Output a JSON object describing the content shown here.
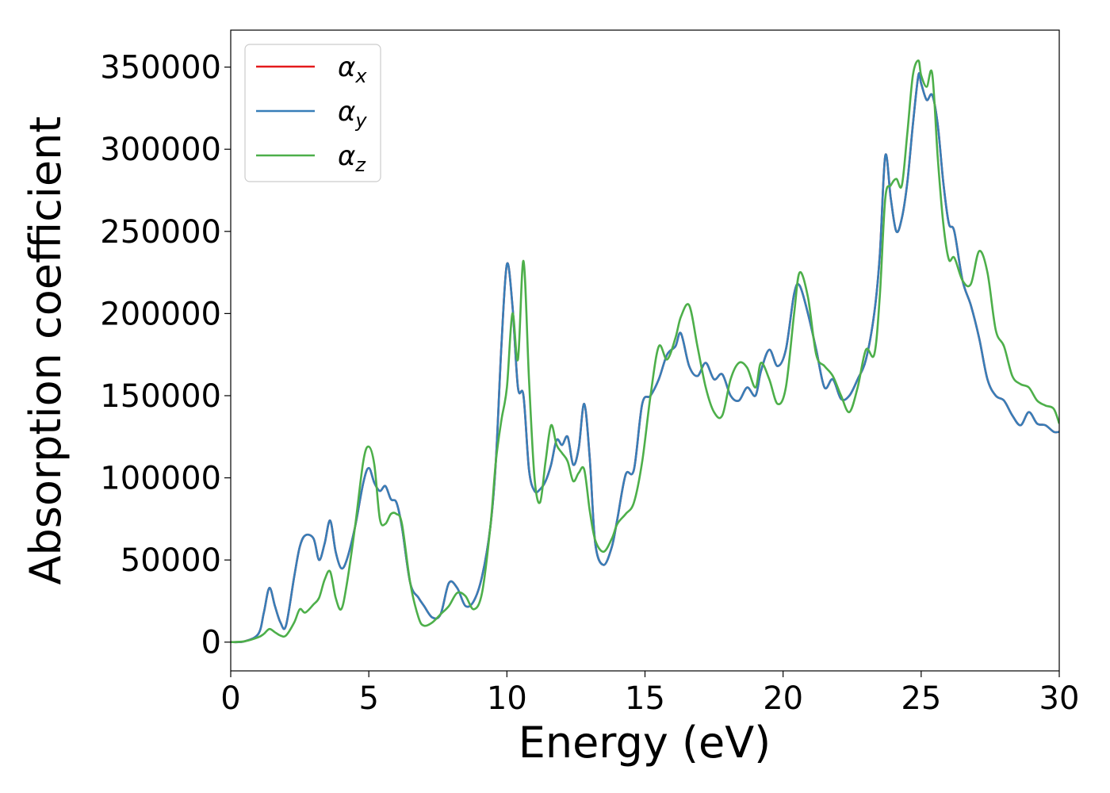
{
  "chart_data": {
    "type": "line",
    "title": "",
    "xlabel": "Energy (eV)",
    "ylabel": "Absorption coefficient",
    "xlim": [
      0,
      30
    ],
    "ylim": [
      -17500,
      372500
    ],
    "xticks": [
      0,
      5,
      10,
      15,
      20,
      25,
      30
    ],
    "xtick_labels": [
      "0",
      "5",
      "10",
      "15",
      "20",
      "25",
      "30"
    ],
    "yticks": [
      0,
      50000,
      100000,
      150000,
      200000,
      250000,
      300000,
      350000
    ],
    "ytick_labels": [
      "0",
      "50000",
      "100000",
      "150000",
      "200000",
      "250000",
      "300000",
      "350000"
    ],
    "grid": false,
    "legend_position": "top-left",
    "x": [
      0,
      0.5,
      1.0,
      1.2,
      1.4,
      1.6,
      1.8,
      2.0,
      2.3,
      2.5,
      2.7,
      3.0,
      3.2,
      3.4,
      3.6,
      3.8,
      4.0,
      4.2,
      4.5,
      4.8,
      5.0,
      5.2,
      5.4,
      5.6,
      5.8,
      6.0,
      6.2,
      6.5,
      6.8,
      7.0,
      7.3,
      7.6,
      7.9,
      8.2,
      8.5,
      8.8,
      9.1,
      9.4,
      9.6,
      9.8,
      10.0,
      10.2,
      10.4,
      10.6,
      10.8,
      11.0,
      11.2,
      11.4,
      11.6,
      11.8,
      12.0,
      12.2,
      12.4,
      12.6,
      12.8,
      13.0,
      13.2,
      13.5,
      13.8,
      14.0,
      14.3,
      14.6,
      14.9,
      15.2,
      15.5,
      15.8,
      16.1,
      16.3,
      16.6,
      16.9,
      17.2,
      17.5,
      17.8,
      18.1,
      18.4,
      18.7,
      19.0,
      19.2,
      19.5,
      19.8,
      20.1,
      20.4,
      20.6,
      20.9,
      21.2,
      21.5,
      21.8,
      22.1,
      22.4,
      22.7,
      23.0,
      23.3,
      23.5,
      23.7,
      23.9,
      24.1,
      24.3,
      24.5,
      24.7,
      24.9,
      25.0,
      25.2,
      25.4,
      25.6,
      25.8,
      26.0,
      26.2,
      26.5,
      26.8,
      27.1,
      27.4,
      27.7,
      28.0,
      28.3,
      28.6,
      28.9,
      29.2,
      29.5,
      29.8,
      30.0
    ],
    "series": [
      {
        "name": "αx",
        "color": "#e41a1c",
        "values": [
          0,
          500,
          5000,
          18000,
          33000,
          22000,
          12000,
          10000,
          40000,
          58000,
          65000,
          63000,
          50000,
          60000,
          74000,
          55000,
          45000,
          50000,
          70000,
          97000,
          106000,
          97000,
          92000,
          95000,
          87000,
          85000,
          70000,
          36000,
          27000,
          22000,
          15000,
          17000,
          36000,
          33000,
          22000,
          25000,
          40000,
          70000,
          110000,
          180000,
          230000,
          205000,
          155000,
          150000,
          105000,
          92000,
          93000,
          98000,
          108000,
          123000,
          120000,
          125000,
          108000,
          118000,
          145000,
          112000,
          60000,
          47000,
          58000,
          75000,
          102000,
          105000,
          145000,
          150000,
          160000,
          175000,
          180000,
          188000,
          168000,
          162000,
          170000,
          160000,
          163000,
          150000,
          147000,
          155000,
          150000,
          165000,
          178000,
          168000,
          178000,
          212000,
          217000,
          200000,
          178000,
          155000,
          160000,
          148000,
          150000,
          160000,
          172000,
          200000,
          235000,
          296000,
          270000,
          250000,
          258000,
          280000,
          315000,
          345000,
          340000,
          330000,
          333000,
          315000,
          280000,
          255000,
          250000,
          220000,
          205000,
          185000,
          160000,
          150000,
          147000,
          138000,
          132000,
          140000,
          133000,
          132000,
          128000,
          128000
        ]
      },
      {
        "name": "αy",
        "color": "#377eb8",
        "values": [
          0,
          500,
          5000,
          18000,
          33000,
          22000,
          12000,
          10000,
          40000,
          58000,
          65000,
          63000,
          50000,
          60000,
          74000,
          55000,
          45000,
          50000,
          70000,
          97000,
          106000,
          97000,
          92000,
          95000,
          87000,
          85000,
          70000,
          36000,
          27000,
          22000,
          15000,
          17000,
          36000,
          33000,
          22000,
          25000,
          40000,
          70000,
          110000,
          180000,
          230000,
          205000,
          155000,
          150000,
          105000,
          92000,
          93000,
          98000,
          108000,
          123000,
          120000,
          125000,
          108000,
          118000,
          145000,
          112000,
          60000,
          47000,
          58000,
          75000,
          102000,
          105000,
          145000,
          150000,
          160000,
          175000,
          180000,
          188000,
          168000,
          162000,
          170000,
          160000,
          163000,
          150000,
          147000,
          155000,
          150000,
          165000,
          178000,
          168000,
          178000,
          212000,
          217000,
          200000,
          178000,
          155000,
          160000,
          148000,
          150000,
          160000,
          172000,
          200000,
          235000,
          296000,
          270000,
          250000,
          258000,
          280000,
          315000,
          345000,
          340000,
          330000,
          333000,
          315000,
          280000,
          255000,
          250000,
          220000,
          205000,
          185000,
          160000,
          150000,
          147000,
          138000,
          132000,
          140000,
          133000,
          132000,
          128000,
          128000
        ]
      },
      {
        "name": "αz",
        "color": "#4daf4a",
        "values": [
          0,
          500,
          3000,
          5000,
          8000,
          6000,
          4000,
          4000,
          12000,
          20000,
          18000,
          23000,
          27000,
          38000,
          43000,
          27000,
          20000,
          35000,
          70000,
          110000,
          119000,
          108000,
          75000,
          72000,
          78000,
          78000,
          72000,
          36000,
          15000,
          10000,
          12000,
          17000,
          22000,
          30000,
          28000,
          20000,
          30000,
          70000,
          110000,
          135000,
          155000,
          200000,
          172000,
          232000,
          160000,
          100000,
          85000,
          110000,
          132000,
          120000,
          115000,
          110000,
          98000,
          103000,
          105000,
          80000,
          62000,
          55000,
          63000,
          72000,
          78000,
          85000,
          110000,
          150000,
          180000,
          172000,
          185000,
          198000,
          205000,
          180000,
          155000,
          140000,
          138000,
          160000,
          170000,
          167000,
          155000,
          170000,
          160000,
          145000,
          155000,
          200000,
          225000,
          210000,
          175000,
          168000,
          162000,
          150000,
          140000,
          155000,
          178000,
          175000,
          210000,
          270000,
          278000,
          282000,
          278000,
          310000,
          345000,
          354000,
          345000,
          338000,
          346000,
          295000,
          255000,
          233000,
          234000,
          220000,
          218000,
          238000,
          225000,
          190000,
          180000,
          162000,
          157000,
          155000,
          147000,
          144000,
          142000,
          133000
        ]
      }
    ]
  }
}
